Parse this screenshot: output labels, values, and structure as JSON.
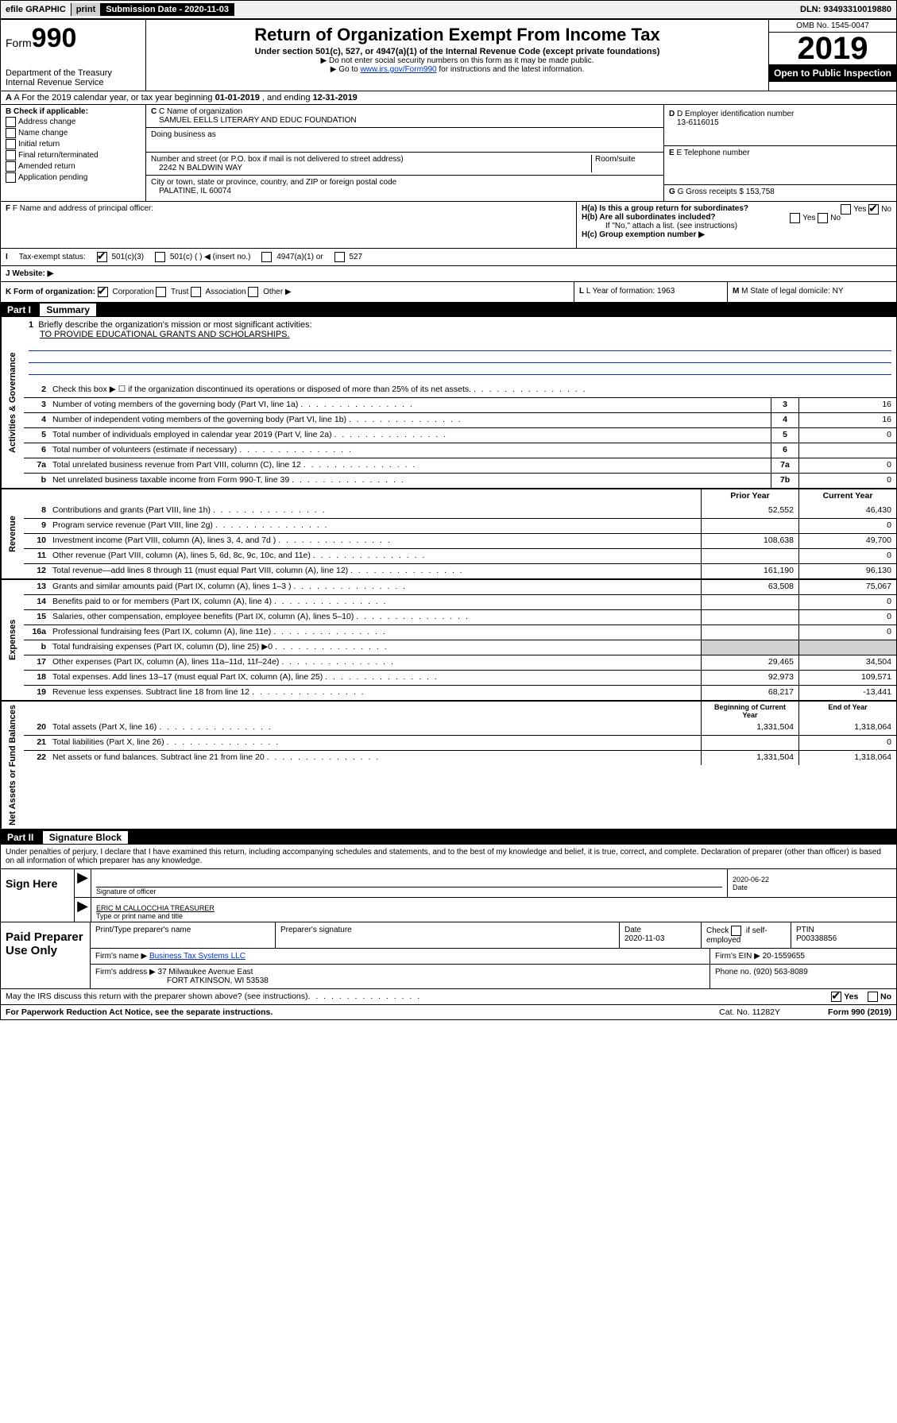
{
  "topbar": {
    "efile": "efile GRAPHIC",
    "print": "print",
    "sub_label": "Submission Date - ",
    "sub_date": "2020-11-03",
    "dln_label": "DLN: ",
    "dln": "93493310019880"
  },
  "header": {
    "form_word": "Form",
    "form_num": "990",
    "dept1": "Department of the Treasury",
    "dept2": "Internal Revenue Service",
    "title": "Return of Organization Exempt From Income Tax",
    "sub1": "Under section 501(c), 527, or 4947(a)(1) of the Internal Revenue Code (except private foundations)",
    "sub2": "▶ Do not enter social security numbers on this form as it may be made public.",
    "sub3_a": "▶ Go to ",
    "sub3_link": "www.irs.gov/Form990",
    "sub3_b": " for instructions and the latest information.",
    "omb": "OMB No. 1545-0047",
    "year": "2019",
    "open": "Open to Public Inspection"
  },
  "lineA": {
    "text_a": "A For the 2019 calendar year, or tax year beginning ",
    "begin": "01-01-2019",
    "text_b": " , and ending ",
    "end": "12-31-2019"
  },
  "boxB": {
    "title": "B Check if applicable:",
    "addr": "Address change",
    "name": "Name change",
    "init": "Initial return",
    "final": "Final return/terminated",
    "amend": "Amended return",
    "app": "Application pending"
  },
  "boxC": {
    "label": "C Name of organization",
    "org": "SAMUEL EELLS LITERARY AND EDUC FOUNDATION",
    "dba_label": "Doing business as",
    "street_label": "Number and street (or P.O. box if mail is not delivered to street address)",
    "room_label": "Room/suite",
    "street": "2242 N BALDWIN WAY",
    "city_label": "City or town, state or province, country, and ZIP or foreign postal code",
    "city": "PALATINE, IL  60074"
  },
  "boxD": {
    "label": "D Employer identification number",
    "ein": "13-6116015"
  },
  "boxE": {
    "label": "E Telephone number",
    "phone": ""
  },
  "boxG": {
    "label": "G Gross receipts $ ",
    "val": "153,758"
  },
  "boxF": {
    "label": "F Name and address of principal officer:"
  },
  "boxH": {
    "ha": "H(a)  Is this a group return for subordinates?",
    "hb": "H(b)  Are all subordinates included?",
    "hb_note": "If \"No,\" attach a list. (see instructions)",
    "hc": "H(c)  Group exemption number ▶",
    "yes": "Yes",
    "no": "No"
  },
  "boxI": {
    "label": "Tax-exempt status:",
    "o1": "501(c)(3)",
    "o2": "501(c) (   ) ◀ (insert no.)",
    "o3": "4947(a)(1) or",
    "o4": "527"
  },
  "boxJ": {
    "label": "Website: ▶"
  },
  "boxK": {
    "label": "K Form of organization:",
    "corp": "Corporation",
    "trust": "Trust",
    "assoc": "Association",
    "other": "Other ▶"
  },
  "boxL": {
    "label": "L Year of formation: ",
    "val": "1963"
  },
  "boxM": {
    "label": "M State of legal domicile: ",
    "val": "NY"
  },
  "part1": {
    "label": "Part I",
    "title": "Summary"
  },
  "vtabs": {
    "gov": "Activities & Governance",
    "rev": "Revenue",
    "exp": "Expenses",
    "net": "Net Assets or Fund Balances"
  },
  "mission": {
    "num": "1",
    "label": "Briefly describe the organization's mission or most significant activities:",
    "text": "TO PROVIDE EDUCATIONAL GRANTS AND SCHOLARSHIPS."
  },
  "lines_gov": [
    {
      "n": "2",
      "d": "Check this box ▶ ☐  if the organization discontinued its operations or disposed of more than 25% of its net assets.",
      "box": "",
      "v": ""
    },
    {
      "n": "3",
      "d": "Number of voting members of the governing body (Part VI, line 1a)",
      "box": "3",
      "v": "16"
    },
    {
      "n": "4",
      "d": "Number of independent voting members of the governing body (Part VI, line 1b)",
      "box": "4",
      "v": "16"
    },
    {
      "n": "5",
      "d": "Total number of individuals employed in calendar year 2019 (Part V, line 2a)",
      "box": "5",
      "v": "0"
    },
    {
      "n": "6",
      "d": "Total number of volunteers (estimate if necessary)",
      "box": "6",
      "v": ""
    },
    {
      "n": "7a",
      "d": "Total unrelated business revenue from Part VIII, column (C), line 12",
      "box": "7a",
      "v": "0"
    },
    {
      "n": "b",
      "d": "Net unrelated business taxable income from Form 990-T, line 39",
      "box": "7b",
      "v": "0"
    }
  ],
  "colheads": {
    "prior": "Prior Year",
    "current": "Current Year",
    "begin": "Beginning of Current Year",
    "end": "End of Year"
  },
  "lines_rev": [
    {
      "n": "8",
      "d": "Contributions and grants (Part VIII, line 1h)",
      "p": "52,552",
      "c": "46,430"
    },
    {
      "n": "9",
      "d": "Program service revenue (Part VIII, line 2g)",
      "p": "",
      "c": "0"
    },
    {
      "n": "10",
      "d": "Investment income (Part VIII, column (A), lines 3, 4, and 7d )",
      "p": "108,638",
      "c": "49,700"
    },
    {
      "n": "11",
      "d": "Other revenue (Part VIII, column (A), lines 5, 6d, 8c, 9c, 10c, and 11e)",
      "p": "",
      "c": "0"
    },
    {
      "n": "12",
      "d": "Total revenue—add lines 8 through 11 (must equal Part VIII, column (A), line 12)",
      "p": "161,190",
      "c": "96,130"
    }
  ],
  "lines_exp": [
    {
      "n": "13",
      "d": "Grants and similar amounts paid (Part IX, column (A), lines 1–3 )",
      "p": "63,508",
      "c": "75,067"
    },
    {
      "n": "14",
      "d": "Benefits paid to or for members (Part IX, column (A), line 4)",
      "p": "",
      "c": "0"
    },
    {
      "n": "15",
      "d": "Salaries, other compensation, employee benefits (Part IX, column (A), lines 5–10)",
      "p": "",
      "c": "0"
    },
    {
      "n": "16a",
      "d": "Professional fundraising fees (Part IX, column (A), line 11e)",
      "p": "",
      "c": "0"
    },
    {
      "n": "b",
      "d": "Total fundraising expenses (Part IX, column (D), line 25) ▶0",
      "p": "shaded",
      "c": "shaded"
    },
    {
      "n": "17",
      "d": "Other expenses (Part IX, column (A), lines 11a–11d, 11f–24e)",
      "p": "29,465",
      "c": "34,504"
    },
    {
      "n": "18",
      "d": "Total expenses. Add lines 13–17 (must equal Part IX, column (A), line 25)",
      "p": "92,973",
      "c": "109,571"
    },
    {
      "n": "19",
      "d": "Revenue less expenses. Subtract line 18 from line 12",
      "p": "68,217",
      "c": "-13,441"
    }
  ],
  "lines_net": [
    {
      "n": "20",
      "d": "Total assets (Part X, line 16)",
      "p": "1,331,504",
      "c": "1,318,064"
    },
    {
      "n": "21",
      "d": "Total liabilities (Part X, line 26)",
      "p": "",
      "c": "0"
    },
    {
      "n": "22",
      "d": "Net assets or fund balances. Subtract line 21 from line 20",
      "p": "1,331,504",
      "c": "1,318,064"
    }
  ],
  "part2": {
    "label": "Part II",
    "title": "Signature Block"
  },
  "perjury": "Under penalties of perjury, I declare that I have examined this return, including accompanying schedules and statements, and to the best of my knowledge and belief, it is true, correct, and complete. Declaration of preparer (other than officer) is based on all information of which preparer has any knowledge.",
  "sign": {
    "here": "Sign Here",
    "sig_label": "Signature of officer",
    "date_label": "Date",
    "date": "2020-06-22",
    "name": "ERIC M CALLOCCHIA  TREASURER",
    "name_label": "Type or print name and title"
  },
  "prep": {
    "label": "Paid Preparer Use Only",
    "h1": "Print/Type preparer's name",
    "h2": "Preparer's signature",
    "h3": "Date",
    "h3v": "2020-11-03",
    "h4a": "Check",
    "h4b": "if self-employed",
    "h5": "PTIN",
    "h5v": "P00338856",
    "firm_name_l": "Firm's name    ▶ ",
    "firm_name": "Business Tax Systems LLC",
    "firm_ein_l": "Firm's EIN ▶ ",
    "firm_ein": "20-1559655",
    "firm_addr_l": "Firm's address ▶ ",
    "firm_addr1": "37 Milwaukee Avenue East",
    "firm_addr2": "FORT ATKINSON, WI  53538",
    "phone_l": "Phone no. ",
    "phone": "(920) 563-8089"
  },
  "discuss": {
    "q": "May the IRS discuss this return with the preparer shown above? (see instructions)",
    "yes": "Yes",
    "no": "No"
  },
  "footer": {
    "left": "For Paperwork Reduction Act Notice, see the separate instructions.",
    "mid": "Cat. No. 11282Y",
    "right": "Form 990 (2019)"
  }
}
